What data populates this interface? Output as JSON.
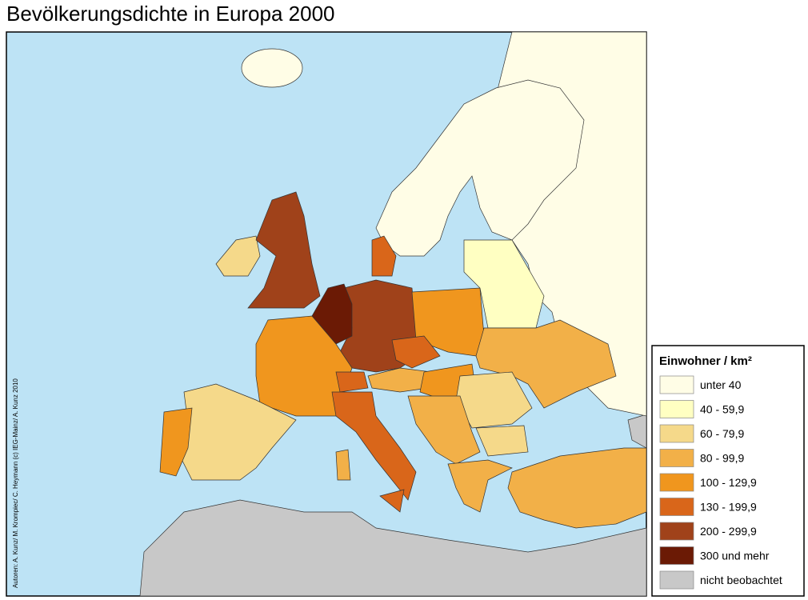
{
  "title": "Bevölkerungsdichte in Europa 2000",
  "credit": "Autoren: A. Kunz/ M. Krompiec/ C. Heymann (c) IEG-Mainz/ A. Kunz 2010",
  "legend": {
    "title": "Einwohner / km²",
    "items": [
      {
        "label": "unter  40",
        "color": "#fffde6"
      },
      {
        "label": "40 -   59,9",
        "color": "#ffffc2"
      },
      {
        "label": "60 -   79,9",
        "color": "#f5d98a"
      },
      {
        "label": "80 -   99,9",
        "color": "#f2b048"
      },
      {
        "label": "100 - 129,9",
        "color": "#f0961e"
      },
      {
        "label": "130 - 199,9",
        "color": "#d9661a"
      },
      {
        "label": "200 - 299,9",
        "color": "#a0421a"
      },
      {
        "label": "300 und mehr",
        "color": "#6b1a05"
      },
      {
        "label": "nicht beobachtet",
        "color": "#c8c8c8"
      }
    ]
  }
}
